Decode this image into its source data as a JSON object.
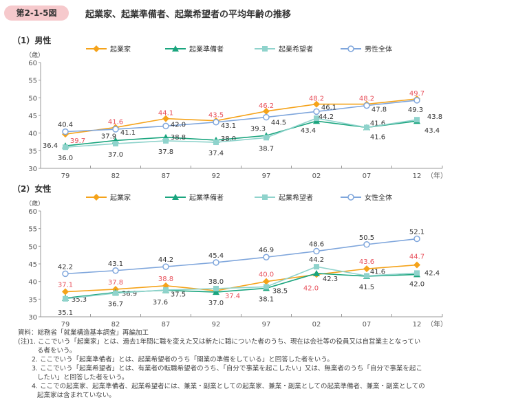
{
  "header": {
    "figure_no": "第2-1-5図",
    "title": "起業家、起業準備者、起業希望者の平均年齢の推移"
  },
  "chart_data": [
    {
      "type": "line",
      "title": "（1）男性",
      "ylabel": "（歳）",
      "xlabel": "（年）",
      "categories": [
        "79",
        "82",
        "87",
        "92",
        "97",
        "02",
        "07",
        "12"
      ],
      "ylim": [
        30,
        60
      ],
      "yticks": [
        30,
        35,
        40,
        45,
        50,
        55,
        60
      ],
      "grid": false,
      "legend": "top",
      "series": [
        {
          "name": "起業家",
          "color": "#f5a31a",
          "label_color": "#e8505b",
          "marker": "diamond",
          "values": [
            39.7,
            41.6,
            44.1,
            43.5,
            46.2,
            48.2,
            48.2,
            49.7
          ]
        },
        {
          "name": "起業準備者",
          "color": "#1aa57e",
          "label_color": "#333333",
          "marker": "triangle",
          "values": [
            36.4,
            37.9,
            38.8,
            38.0,
            39.3,
            43.4,
            41.6,
            43.4
          ]
        },
        {
          "name": "起業希望者",
          "color": "#8fd3cc",
          "label_color": "#333333",
          "marker": "square",
          "values": [
            36.0,
            37.0,
            37.8,
            37.4,
            38.7,
            44.2,
            41.6,
            43.8
          ]
        },
        {
          "name": "男性全体",
          "color": "#7fa6dc",
          "label_color": "#333333",
          "marker": "circle",
          "values": [
            40.4,
            41.1,
            42.0,
            43.1,
            44.5,
            46.1,
            47.8,
            49.3
          ]
        }
      ]
    },
    {
      "type": "line",
      "title": "（2）女性",
      "ylabel": "（歳）",
      "xlabel": "（年）",
      "categories": [
        "79",
        "82",
        "87",
        "92",
        "97",
        "02",
        "07",
        "12"
      ],
      "ylim": [
        30,
        60
      ],
      "yticks": [
        30,
        35,
        40,
        45,
        50,
        55,
        60
      ],
      "grid": false,
      "legend": "top",
      "series": [
        {
          "name": "起業家",
          "color": "#f5a31a",
          "label_color": "#e8505b",
          "marker": "diamond",
          "values": [
            37.1,
            37.8,
            38.8,
            37.4,
            40.0,
            42.0,
            43.6,
            44.7
          ]
        },
        {
          "name": "起業準備者",
          "color": "#1aa57e",
          "label_color": "#333333",
          "marker": "triangle",
          "values": [
            35.3,
            36.9,
            37.5,
            37.0,
            38.1,
            42.3,
            41.5,
            42.0
          ]
        },
        {
          "name": "起業希望者",
          "color": "#8fd3cc",
          "label_color": "#333333",
          "marker": "square",
          "values": [
            35.1,
            36.7,
            37.6,
            38.0,
            38.5,
            44.2,
            41.6,
            42.4
          ]
        },
        {
          "name": "女性全体",
          "color": "#7fa6dc",
          "label_color": "#333333",
          "marker": "circle",
          "values": [
            42.2,
            43.1,
            44.2,
            45.4,
            46.9,
            48.6,
            50.5,
            52.1
          ]
        }
      ]
    }
  ],
  "notes": {
    "source": "資料：総務省「就業構造基本調査」再編加工",
    "n1a": "(注)1. ここでいう「起業家」とは、過去1年間に職を変えた又は新たに職についた者のうち、現在は会社等の役員又は自営業主となってい",
    "n1b": "る者をいう。",
    "n2": "2. ここでいう「起業準備者」とは、起業希望者のうち「開業の準備をしている」と回答した者をいう。",
    "n3a": "3. ここでいう「起業希望者」とは、有業者の転職希望者のうち、「自分で事業を起こしたい」又は、無業者のうち「自分で事業を起こ",
    "n3b": "したい」と回答した者をいう。",
    "n4a": "4. ここでの起業家、起業準備者、起業希望者には、兼業・副業としての起業家、兼業・副業としての起業準備者、兼業・副業としての",
    "n4b": "起業家は含まれていない。"
  }
}
